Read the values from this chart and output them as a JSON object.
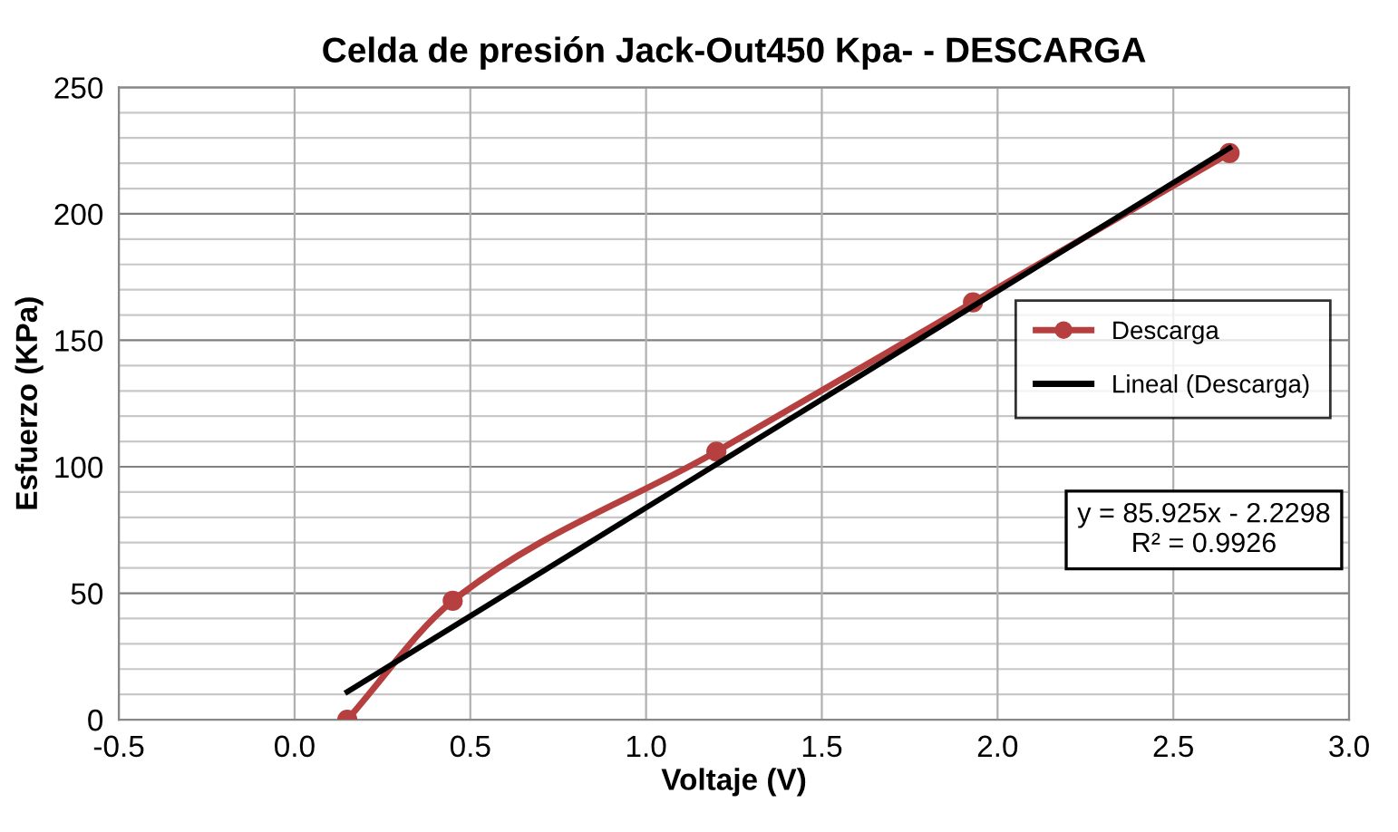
{
  "chart_data": {
    "type": "line",
    "title": "Celda de presión Jack-Out450 Kpa- - DESCARGA",
    "xlabel": "Voltaje (V)",
    "ylabel": "Esfuerzo (KPa)",
    "series": [
      {
        "name": "Descarga",
        "color": "#b5403f",
        "marker": "circle",
        "x": [
          0.15,
          0.45,
          1.2,
          1.93,
          2.66
        ],
        "values": [
          0,
          47,
          106,
          165,
          224
        ]
      },
      {
        "name": "Lineal (Descarga)",
        "color": "#000000",
        "marker": "none",
        "x": [
          0.15,
          2.66
        ],
        "values": [
          11,
          226
        ]
      }
    ],
    "xlim": [
      -0.5,
      3.0
    ],
    "xticks": [
      {
        "value": -0.5,
        "label": "-0.5"
      },
      {
        "value": 0.0,
        "label": "0.0"
      },
      {
        "value": 0.5,
        "label": "0.5"
      },
      {
        "value": 1.0,
        "label": "1.0"
      },
      {
        "value": 1.5,
        "label": "1.5"
      },
      {
        "value": 2.0,
        "label": "2.0"
      },
      {
        "value": 2.5,
        "label": "2.5"
      },
      {
        "value": 3.0,
        "label": "3.0"
      }
    ],
    "ylim": [
      0,
      250
    ],
    "yticks": [
      0,
      {
        "value": 10,
        "label": null
      },
      {
        "value": 20,
        "label": null
      },
      {
        "value": 30,
        "label": null
      },
      {
        "value": 40,
        "label": null
      },
      50,
      {
        "value": 60,
        "label": null
      },
      {
        "value": 70,
        "label": null
      },
      {
        "value": 80,
        "label": null
      },
      {
        "value": 90,
        "label": null
      },
      100,
      {
        "value": 110,
        "label": null
      },
      {
        "value": 120,
        "label": null
      },
      {
        "value": 130,
        "label": null
      },
      {
        "value": 140,
        "label": null
      },
      150,
      {
        "value": 160,
        "label": null
      },
      {
        "value": 170,
        "label": null
      },
      {
        "value": 180,
        "label": null
      },
      {
        "value": 190,
        "label": null
      },
      200,
      {
        "value": 210,
        "label": null
      },
      {
        "value": 220,
        "label": null
      },
      {
        "value": 230,
        "label": null
      },
      {
        "value": 240,
        "label": null
      },
      250
    ],
    "grid": true,
    "legend": "right",
    "line_style": "solid",
    "annotations": [
      "y = 85.925x - 2.2298\nR² = 0.9926"
    ]
  }
}
